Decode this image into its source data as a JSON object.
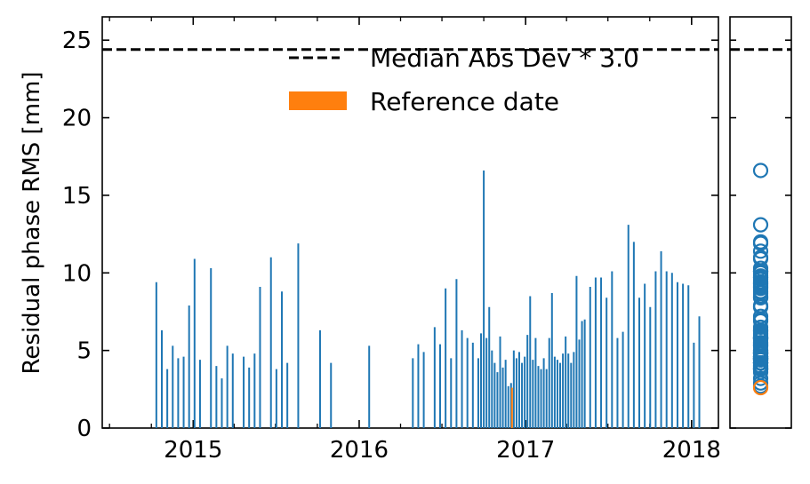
{
  "chart_data": [
    {
      "type": "bar",
      "ylabel": "Residual phase RMS [mm]",
      "xlabel": "",
      "xlim": [
        "2014-06-15",
        "2018-03-01"
      ],
      "ylim": [
        0,
        26.5
      ],
      "yticks": [
        0,
        5,
        10,
        15,
        20,
        25
      ],
      "xticks": [
        {
          "date": "2015-01-01",
          "label": "2015"
        },
        {
          "date": "2016-01-01",
          "label": "2016"
        },
        {
          "date": "2017-01-01",
          "label": "2017"
        },
        {
          "date": "2018-01-01",
          "label": "2018"
        }
      ],
      "threshold": {
        "name": "Median Abs Dev * 3.0",
        "value": 24.4,
        "style": "dashed"
      },
      "reference": {
        "name": "Reference date",
        "date": "2016-12-02",
        "value": 2.6
      },
      "legend_position": "top-right",
      "colors": {
        "bars": "#1f77b4",
        "reference": "#ff7f0e",
        "threshold": "#000000"
      },
      "series": [
        {
          "x": [
            "2014-10-12",
            "2014-10-24",
            "2014-11-05",
            "2014-11-17",
            "2014-11-29",
            "2014-12-11",
            "2014-12-23",
            "2015-01-04",
            "2015-01-16",
            "2015-02-09",
            "2015-02-21",
            "2015-03-05",
            "2015-03-17",
            "2015-03-29",
            "2015-04-22",
            "2015-05-04",
            "2015-05-16",
            "2015-05-28",
            "2015-06-21",
            "2015-07-03",
            "2015-07-15",
            "2015-07-27",
            "2015-08-20",
            "2015-10-07",
            "2015-10-31",
            "2016-01-23",
            "2016-04-28",
            "2016-05-10",
            "2016-05-22",
            "2016-06-15",
            "2016-06-27",
            "2016-07-09",
            "2016-07-21",
            "2016-08-02",
            "2016-08-14",
            "2016-08-26",
            "2016-09-07",
            "2016-09-19",
            "2016-09-25",
            "2016-10-01",
            "2016-10-07",
            "2016-10-13",
            "2016-10-19",
            "2016-10-25",
            "2016-10-31",
            "2016-11-06",
            "2016-11-12",
            "2016-11-18",
            "2016-11-24",
            "2016-11-30",
            "2016-12-06",
            "2016-12-12",
            "2016-12-18",
            "2016-12-24",
            "2016-12-30",
            "2017-01-05",
            "2017-01-11",
            "2017-01-17",
            "2017-01-23",
            "2017-01-29",
            "2017-02-04",
            "2017-02-10",
            "2017-02-16",
            "2017-02-22",
            "2017-02-28",
            "2017-03-06",
            "2017-03-12",
            "2017-03-18",
            "2017-03-24",
            "2017-03-30",
            "2017-04-05",
            "2017-04-11",
            "2017-04-17",
            "2017-04-23",
            "2017-04-29",
            "2017-05-05",
            "2017-05-11",
            "2017-05-23",
            "2017-06-04",
            "2017-06-16",
            "2017-06-28",
            "2017-07-10",
            "2017-07-22",
            "2017-08-03",
            "2017-08-15",
            "2017-08-27",
            "2017-09-08",
            "2017-09-20",
            "2017-10-02",
            "2017-10-14",
            "2017-10-26",
            "2017-11-07",
            "2017-11-19",
            "2017-12-01",
            "2017-12-13",
            "2017-12-25",
            "2018-01-06",
            "2018-01-18"
          ],
          "values": [
            9.4,
            6.3,
            3.8,
            5.3,
            4.5,
            4.6,
            7.9,
            10.9,
            4.4,
            10.3,
            4.0,
            3.2,
            5.3,
            4.8,
            4.6,
            3.9,
            4.8,
            9.1,
            11.0,
            3.8,
            8.8,
            4.2,
            11.9,
            6.3,
            4.2,
            5.3,
            4.5,
            5.4,
            4.9,
            6.5,
            5.4,
            9.0,
            4.5,
            9.6,
            6.3,
            5.8,
            5.5,
            4.5,
            6.1,
            16.6,
            5.8,
            7.8,
            5.0,
            4.2,
            3.6,
            5.9,
            3.9,
            4.4,
            2.7,
            2.9,
            5.0,
            4.5,
            4.9,
            4.2,
            4.6,
            6.0,
            8.5,
            4.4,
            5.8,
            4.0,
            3.8,
            4.5,
            3.8,
            5.8,
            8.7,
            4.6,
            4.4,
            4.2,
            4.8,
            5.9,
            4.8,
            4.2,
            4.9,
            9.8,
            5.7,
            6.9,
            7.0,
            9.1,
            9.7,
            9.7,
            8.4,
            10.1,
            5.8,
            6.2,
            13.1,
            12.0,
            8.4,
            9.3,
            7.8,
            10.1,
            11.4,
            10.1,
            10.0,
            9.4,
            9.3,
            9.2,
            5.5,
            7.2
          ]
        }
      ]
    },
    {
      "type": "scatter",
      "ylim": [
        0,
        26.5
      ],
      "threshold_value": 24.4,
      "colors": {
        "points": "#1f77b4",
        "reference": "#ff7f0e"
      },
      "reference_value": 2.6
    }
  ]
}
